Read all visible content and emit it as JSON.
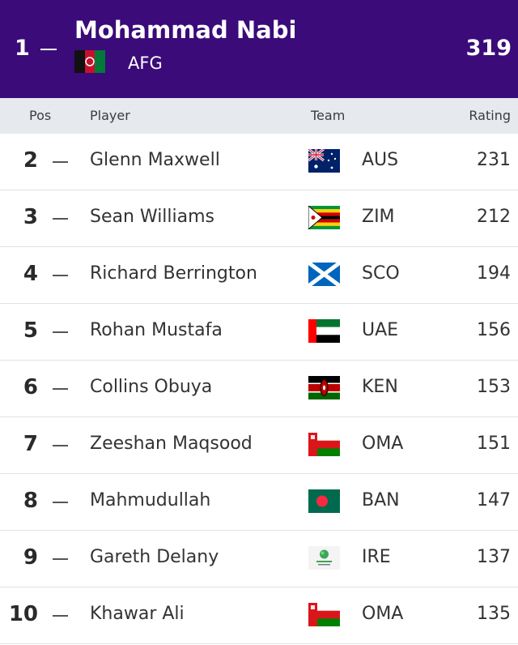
{
  "leader": {
    "pos": "1",
    "player": "Mohammad Nabi",
    "team": "AFG",
    "flag_icon": "afghanistan-flag-icon",
    "rating": "319"
  },
  "columns": {
    "pos": "Pos",
    "player": "Player",
    "team": "Team",
    "rating": "Rating"
  },
  "rows": [
    {
      "pos": "2",
      "player": "Glenn Maxwell",
      "team": "AUS",
      "flag_icon": "australia-flag-icon",
      "rating": "231"
    },
    {
      "pos": "3",
      "player": "Sean Williams",
      "team": "ZIM",
      "flag_icon": "zimbabwe-flag-icon",
      "rating": "212"
    },
    {
      "pos": "4",
      "player": "Richard Berrington",
      "team": "SCO",
      "flag_icon": "scotland-flag-icon",
      "rating": "194"
    },
    {
      "pos": "5",
      "player": "Rohan Mustafa",
      "team": "UAE",
      "flag_icon": "uae-flag-icon",
      "rating": "156"
    },
    {
      "pos": "6",
      "player": "Collins Obuya",
      "team": "KEN",
      "flag_icon": "kenya-flag-icon",
      "rating": "153"
    },
    {
      "pos": "7",
      "player": "Zeeshan Maqsood",
      "team": "OMA",
      "flag_icon": "oman-flag-icon",
      "rating": "151"
    },
    {
      "pos": "8",
      "player": "Mahmudullah",
      "team": "BAN",
      "flag_icon": "bangladesh-flag-icon",
      "rating": "147"
    },
    {
      "pos": "9",
      "player": "Gareth Delany",
      "team": "IRE",
      "flag_icon": "cricket-ireland-logo-icon",
      "rating": "137"
    },
    {
      "pos": "10",
      "player": "Khawar Ali",
      "team": "OMA",
      "flag_icon": "oman-flag-icon",
      "rating": "135"
    }
  ],
  "colors": {
    "banner": "#3a0b79",
    "header_bg": "#e6e9ee"
  }
}
